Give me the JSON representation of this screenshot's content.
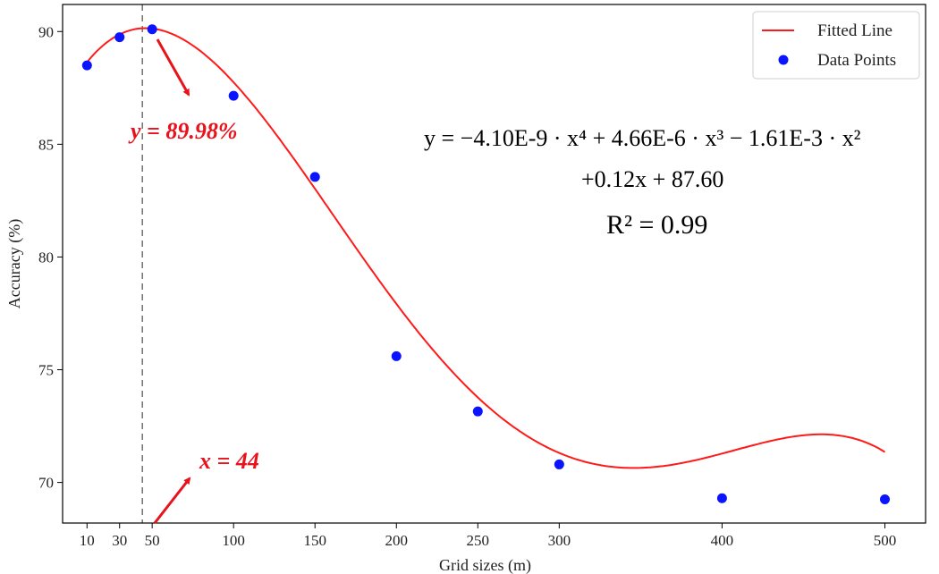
{
  "chart_data": {
    "type": "scatter",
    "xlabel": "Grid sizes (m)",
    "ylabel": "Accuracy (%)",
    "xlim": [
      -5,
      525
    ],
    "ylim": [
      68.2,
      91.2
    ],
    "x_ticks": [
      10,
      30,
      50,
      100,
      150,
      200,
      250,
      300,
      400,
      500
    ],
    "x_tick_labels": [
      "10",
      "30",
      "50",
      "100",
      "150",
      "200",
      "250",
      "300",
      "400",
      "500"
    ],
    "y_ticks": [
      70,
      75,
      80,
      85,
      90
    ],
    "y_tick_labels": [
      "70",
      "75",
      "80",
      "85",
      "90"
    ],
    "grid": false,
    "legend_position": "top-right",
    "series": [
      {
        "name": "Fitted Line",
        "kind": "line",
        "color": "#ff1a1a",
        "x_range": [
          10,
          500
        ],
        "coefficients": {
          "x4": -4.1e-09,
          "x3": 4.66e-06,
          "x2": -0.00161,
          "x1": 0.12,
          "c": 87.6
        }
      },
      {
        "name": "Data Points",
        "kind": "scatter",
        "color": "#0a14ff",
        "x": [
          10,
          30,
          50,
          100,
          150,
          200,
          250,
          300,
          400,
          500
        ],
        "y": [
          88.5,
          89.75,
          90.1,
          87.15,
          83.55,
          75.6,
          73.15,
          70.8,
          69.3,
          69.25
        ]
      }
    ],
    "reference_line": {
      "x": 44,
      "style": "dashed",
      "color": "#777777"
    },
    "annotations": {
      "y_label": "y = 89.98%",
      "x_label": "x = 44",
      "color": "#e8121c"
    },
    "equation": {
      "line1": "y = −4.10E-9 · x⁴ + 4.66E-6 · x³ − 1.61E-3 · x²",
      "line2": "+0.12x + 87.60",
      "r2": "R² = 0.99"
    }
  }
}
